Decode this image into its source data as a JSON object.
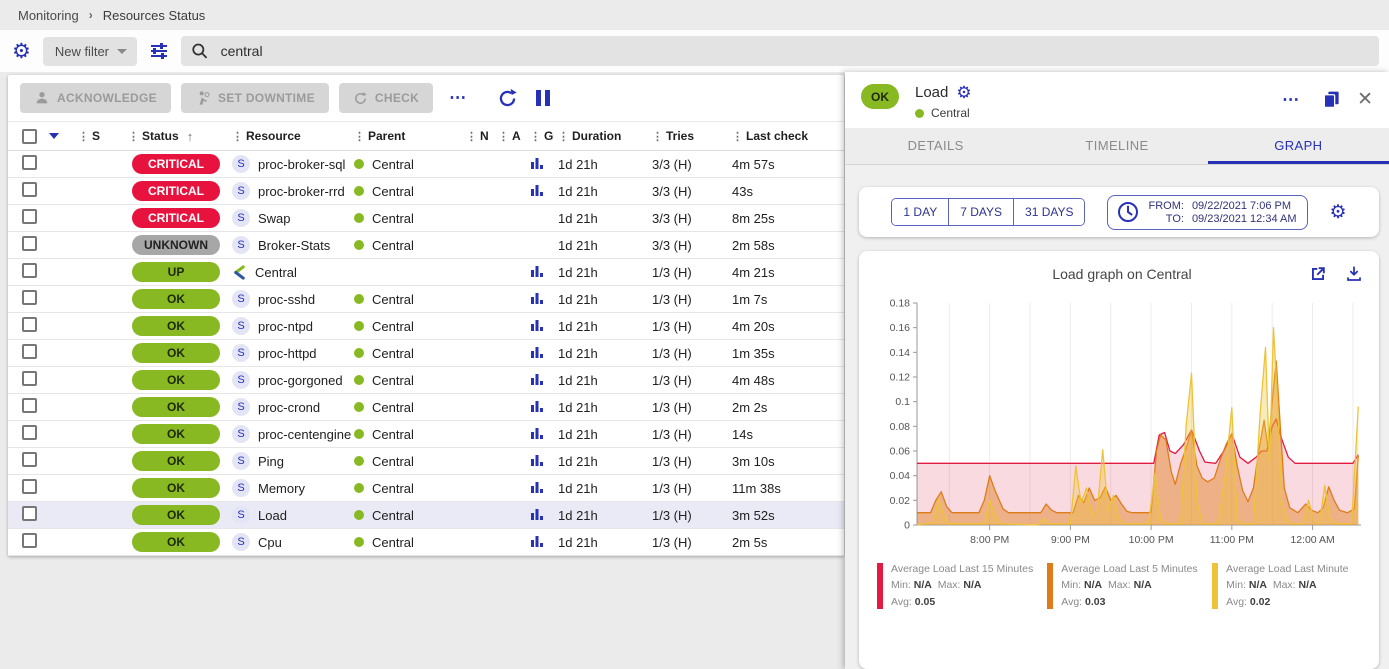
{
  "breadcrumb": {
    "items": [
      "Monitoring",
      "Resources Status"
    ]
  },
  "filter_bar": {
    "new_filter_label": "New filter",
    "search_value": "central"
  },
  "toolbar": {
    "acknowledge_label": "ACKNOWLEDGE",
    "set_downtime_label": "SET DOWNTIME",
    "check_label": "CHECK",
    "more_label": "⋯"
  },
  "table": {
    "headers": {
      "s": "S",
      "status": "Status",
      "resource": "Resource",
      "parent": "Parent",
      "n": "N",
      "a": "A",
      "g": "G",
      "duration": "Duration",
      "tries": "Tries",
      "last_check": "Last check"
    },
    "rows": [
      {
        "status": "CRITICAL",
        "kind": "critical",
        "icon": "S",
        "resource": "proc-broker-sql",
        "parent": "Central",
        "graph": true,
        "duration": "1d 21h",
        "tries": "3/3 (H)",
        "last_check": "4m 57s",
        "selected": false
      },
      {
        "status": "CRITICAL",
        "kind": "critical",
        "icon": "S",
        "resource": "proc-broker-rrd",
        "parent": "Central",
        "graph": true,
        "duration": "1d 21h",
        "tries": "3/3 (H)",
        "last_check": "43s",
        "selected": false
      },
      {
        "status": "CRITICAL",
        "kind": "critical",
        "icon": "S",
        "resource": "Swap",
        "parent": "Central",
        "graph": false,
        "duration": "1d 21h",
        "tries": "3/3 (H)",
        "last_check": "8m 25s",
        "selected": false
      },
      {
        "status": "UNKNOWN",
        "kind": "unknown",
        "icon": "S",
        "resource": "Broker-Stats",
        "parent": "Central",
        "graph": false,
        "duration": "1d 21h",
        "tries": "3/3 (H)",
        "last_check": "2m 58s",
        "selected": false
      },
      {
        "status": "UP",
        "kind": "up",
        "icon": "centreon",
        "resource": "Central",
        "parent": "",
        "graph": true,
        "duration": "1d 21h",
        "tries": "1/3 (H)",
        "last_check": "4m 21s",
        "selected": false
      },
      {
        "status": "OK",
        "kind": "ok",
        "icon": "S",
        "resource": "proc-sshd",
        "parent": "Central",
        "graph": true,
        "duration": "1d 21h",
        "tries": "1/3 (H)",
        "last_check": "1m 7s",
        "selected": false
      },
      {
        "status": "OK",
        "kind": "ok",
        "icon": "S",
        "resource": "proc-ntpd",
        "parent": "Central",
        "graph": true,
        "duration": "1d 21h",
        "tries": "1/3 (H)",
        "last_check": "4m 20s",
        "selected": false
      },
      {
        "status": "OK",
        "kind": "ok",
        "icon": "S",
        "resource": "proc-httpd",
        "parent": "Central",
        "graph": true,
        "duration": "1d 21h",
        "tries": "1/3 (H)",
        "last_check": "1m 35s",
        "selected": false
      },
      {
        "status": "OK",
        "kind": "ok",
        "icon": "S",
        "resource": "proc-gorgoned",
        "parent": "Central",
        "graph": true,
        "duration": "1d 21h",
        "tries": "1/3 (H)",
        "last_check": "4m 48s",
        "selected": false
      },
      {
        "status": "OK",
        "kind": "ok",
        "icon": "S",
        "resource": "proc-crond",
        "parent": "Central",
        "graph": true,
        "duration": "1d 21h",
        "tries": "1/3 (H)",
        "last_check": "2m 2s",
        "selected": false
      },
      {
        "status": "OK",
        "kind": "ok",
        "icon": "S",
        "resource": "proc-centengine",
        "parent": "Central",
        "graph": true,
        "duration": "1d 21h",
        "tries": "1/3 (H)",
        "last_check": "14s",
        "selected": false
      },
      {
        "status": "OK",
        "kind": "ok",
        "icon": "S",
        "resource": "Ping",
        "parent": "Central",
        "graph": true,
        "duration": "1d 21h",
        "tries": "1/3 (H)",
        "last_check": "3m 10s",
        "selected": false
      },
      {
        "status": "OK",
        "kind": "ok",
        "icon": "S",
        "resource": "Memory",
        "parent": "Central",
        "graph": true,
        "duration": "1d 21h",
        "tries": "1/3 (H)",
        "last_check": "11m 38s",
        "selected": false
      },
      {
        "status": "OK",
        "kind": "ok",
        "icon": "S",
        "resource": "Load",
        "parent": "Central",
        "graph": true,
        "duration": "1d 21h",
        "tries": "1/3 (H)",
        "last_check": "3m 52s",
        "selected": true
      },
      {
        "status": "OK",
        "kind": "ok",
        "icon": "S",
        "resource": "Cpu",
        "parent": "Central",
        "graph": true,
        "duration": "1d 21h",
        "tries": "1/3 (H)",
        "last_check": "2m 5s",
        "selected": false
      }
    ]
  },
  "panel": {
    "status": "OK",
    "title": "Load",
    "host": "Central",
    "tabs": [
      {
        "label": "DETAILS",
        "active": false
      },
      {
        "label": "TIMELINE",
        "active": false
      },
      {
        "label": "GRAPH",
        "active": true
      }
    ],
    "time_buttons": [
      "1 DAY",
      "7 DAYS",
      "31 DAYS"
    ],
    "from_label": "FROM:",
    "from_value": "09/22/2021 7:06 PM",
    "to_label": "TO:",
    "to_value": "09/23/2021 12:34 AM",
    "graph_title": "Load graph on Central",
    "legend_min_label": "Min:",
    "legend_max_label": "Max:",
    "legend_avg_label": "Avg:"
  },
  "colors": {
    "accent": "#2731b5",
    "ok_green": "#88b922",
    "critical_red": "#e7133e",
    "unknown_gray": "#a7a7a7",
    "selected_row": "#e9eaf6"
  },
  "chart_data": {
    "type": "area",
    "title": "Load graph on Central",
    "xlabel": "",
    "ylabel": "",
    "x_range_minutes": [
      0,
      330
    ],
    "x_start_time": "7:06 PM",
    "x_ticks": [
      {
        "t": 54,
        "label": "8:00 PM"
      },
      {
        "t": 114,
        "label": "9:00 PM"
      },
      {
        "t": 174,
        "label": "10:00 PM"
      },
      {
        "t": 234,
        "label": "11:00 PM"
      },
      {
        "t": 294,
        "label": "12:00 AM"
      }
    ],
    "ylim": [
      0,
      0.18
    ],
    "y_tick_step": 0.02,
    "grid": "vertical-every-30min",
    "legend_position": "bottom",
    "series": [
      {
        "name": "Average Load Last 15 Minutes",
        "color": "#e31b43",
        "fill": "rgba(227,27,67,0.16)",
        "min": "N/A",
        "max": "N/A",
        "avg": "0.05",
        "points": [
          [
            0,
            0.05
          ],
          [
            170,
            0.05
          ],
          [
            176,
            0.05
          ],
          [
            180,
            0.073
          ],
          [
            184,
            0.075
          ],
          [
            188,
            0.06
          ],
          [
            192,
            0.058
          ],
          [
            198,
            0.065
          ],
          [
            204,
            0.077
          ],
          [
            210,
            0.06
          ],
          [
            214,
            0.051
          ],
          [
            222,
            0.05
          ],
          [
            228,
            0.06
          ],
          [
            234,
            0.074
          ],
          [
            240,
            0.055
          ],
          [
            246,
            0.05
          ],
          [
            252,
            0.055
          ],
          [
            256,
            0.06
          ],
          [
            260,
            0.06
          ],
          [
            264,
            0.08
          ],
          [
            267,
            0.086
          ],
          [
            271,
            0.07
          ],
          [
            276,
            0.055
          ],
          [
            281,
            0.05
          ],
          [
            324,
            0.05
          ],
          [
            328,
            0.057
          ]
        ]
      },
      {
        "name": "Average Load Last 5 Minutes",
        "color": "#df7c1a",
        "fill": "rgba(223,124,26,0.45)",
        "min": "N/A",
        "max": "N/A",
        "avg": "0.03",
        "points": [
          [
            0,
            0.01
          ],
          [
            10,
            0.01
          ],
          [
            14,
            0.02
          ],
          [
            18,
            0.027
          ],
          [
            22,
            0.015
          ],
          [
            26,
            0.01
          ],
          [
            46,
            0.01
          ],
          [
            50,
            0.02
          ],
          [
            54,
            0.04
          ],
          [
            58,
            0.028
          ],
          [
            64,
            0.013
          ],
          [
            68,
            0.01
          ],
          [
            92,
            0.01
          ],
          [
            96,
            0.017
          ],
          [
            100,
            0.012
          ],
          [
            104,
            0.01
          ],
          [
            116,
            0.01
          ],
          [
            120,
            0.024
          ],
          [
            124,
            0.018
          ],
          [
            128,
            0.03
          ],
          [
            132,
            0.02
          ],
          [
            136,
            0.022
          ],
          [
            140,
            0.031
          ],
          [
            144,
            0.02
          ],
          [
            148,
            0.024
          ],
          [
            152,
            0.017
          ],
          [
            156,
            0.011
          ],
          [
            160,
            0.01
          ],
          [
            174,
            0.01
          ],
          [
            178,
            0.06
          ],
          [
            181,
            0.073
          ],
          [
            185,
            0.069
          ],
          [
            189,
            0.043
          ],
          [
            192,
            0.033
          ],
          [
            196,
            0.05
          ],
          [
            200,
            0.062
          ],
          [
            204,
            0.077
          ],
          [
            208,
            0.048
          ],
          [
            212,
            0.038
          ],
          [
            216,
            0.035
          ],
          [
            221,
            0.038
          ],
          [
            226,
            0.055
          ],
          [
            230,
            0.066
          ],
          [
            234,
            0.074
          ],
          [
            238,
            0.048
          ],
          [
            242,
            0.028
          ],
          [
            246,
            0.019
          ],
          [
            250,
            0.03
          ],
          [
            254,
            0.06
          ],
          [
            258,
            0.085
          ],
          [
            261,
            0.062
          ],
          [
            264,
            0.1
          ],
          [
            267,
            0.133
          ],
          [
            270,
            0.08
          ],
          [
            273,
            0.03
          ],
          [
            277,
            0.014
          ],
          [
            283,
            0.01
          ],
          [
            289,
            0.017
          ],
          [
            293,
            0.012
          ],
          [
            298,
            0.01
          ],
          [
            302,
            0.014
          ],
          [
            306,
            0.031
          ],
          [
            310,
            0.02
          ],
          [
            314,
            0.012
          ],
          [
            320,
            0.01
          ],
          [
            325,
            0.013
          ],
          [
            328,
            0.056
          ]
        ]
      },
      {
        "name": "Average Load Last Minute",
        "color": "#eec339",
        "fill": "rgba(238,195,57,0.35)",
        "min": "N/A",
        "max": "N/A",
        "avg": "0.02",
        "points": [
          [
            0,
            0
          ],
          [
            12,
            0.002
          ],
          [
            16,
            0.021
          ],
          [
            20,
            0.008
          ],
          [
            24,
            0.001
          ],
          [
            50,
            0.001
          ],
          [
            54,
            0.02
          ],
          [
            58,
            0.008
          ],
          [
            62,
            0.001
          ],
          [
            90,
            0
          ],
          [
            94,
            0.005
          ],
          [
            98,
            0.001
          ],
          [
            114,
            0.001
          ],
          [
            118,
            0.048
          ],
          [
            122,
            0.018
          ],
          [
            126,
            0.03
          ],
          [
            130,
            0.008
          ],
          [
            134,
            0.012
          ],
          [
            138,
            0.061
          ],
          [
            142,
            0.012
          ],
          [
            146,
            0.024
          ],
          [
            150,
            0.005
          ],
          [
            154,
            0.001
          ],
          [
            172,
            0.001
          ],
          [
            177,
            0.042
          ],
          [
            181,
            0.005
          ],
          [
            185,
            0.001
          ],
          [
            196,
            0.001
          ],
          [
            200,
            0.08
          ],
          [
            204,
            0.123
          ],
          [
            208,
            0.02
          ],
          [
            212,
            0.001
          ],
          [
            224,
            0.001
          ],
          [
            229,
            0.04
          ],
          [
            234,
            0.095
          ],
          [
            238,
            0.005
          ],
          [
            242,
            0.001
          ],
          [
            250,
            0.001
          ],
          [
            255,
            0.09
          ],
          [
            259,
            0.144
          ],
          [
            262,
            0.05
          ],
          [
            265,
            0.16
          ],
          [
            268,
            0.1
          ],
          [
            271,
            0.02
          ],
          [
            275,
            0.005
          ],
          [
            279,
            0.001
          ],
          [
            287,
            0.001
          ],
          [
            291,
            0.02
          ],
          [
            295,
            0.005
          ],
          [
            299,
            0.001
          ],
          [
            303,
            0.032
          ],
          [
            307,
            0.005
          ],
          [
            311,
            0.001
          ],
          [
            323,
            0.001
          ],
          [
            328,
            0.096
          ]
        ]
      }
    ]
  }
}
